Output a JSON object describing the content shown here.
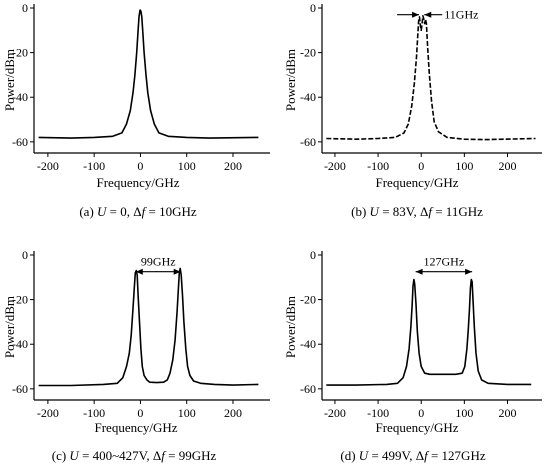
{
  "chart_data": [
    {
      "type": "line",
      "panel": "a",
      "caption": {
        "prefix": "(a) ",
        "var": "U",
        "rest": " = 0,  Δ",
        "var2": "f",
        "rest2": " = 10GHz"
      },
      "xlabel": "Frequency/GHz",
      "ylabel": "Power/dBm",
      "xlim": [
        -230,
        280
      ],
      "ylim": [
        -65,
        0
      ],
      "xticks": [
        -200,
        -100,
        0,
        100,
        200
      ],
      "yticks": [
        0,
        -20,
        -40,
        -60
      ],
      "series": [
        {
          "style": "solid",
          "points": [
            [
              -220,
              -58
            ],
            [
              -150,
              -58.3
            ],
            [
              -100,
              -58
            ],
            [
              -60,
              -57.5
            ],
            [
              -40,
              -56
            ],
            [
              -30,
              -52
            ],
            [
              -22,
              -46
            ],
            [
              -16,
              -38
            ],
            [
              -12,
              -30
            ],
            [
              -8,
              -20
            ],
            [
              -5,
              -10
            ],
            [
              -3,
              -4
            ],
            [
              -1,
              -1
            ],
            [
              0,
              -1
            ],
            [
              1,
              -1.5
            ],
            [
              3,
              -4
            ],
            [
              5,
              -10
            ],
            [
              8,
              -20
            ],
            [
              12,
              -30
            ],
            [
              16,
              -38
            ],
            [
              22,
              -46
            ],
            [
              30,
              -52
            ],
            [
              40,
              -56
            ],
            [
              60,
              -57.5
            ],
            [
              100,
              -58
            ],
            [
              150,
              -58.3
            ],
            [
              255,
              -58
            ]
          ]
        }
      ],
      "annotation": null
    },
    {
      "type": "line",
      "panel": "b",
      "caption": {
        "prefix": "(b) ",
        "var": "U",
        "rest": " = 83V,  Δ",
        "var2": "f",
        "rest2": " = 11GHz"
      },
      "xlabel": "Frequency/GHz",
      "ylabel": "Power/dBm",
      "xlim": [
        -230,
        280
      ],
      "ylim": [
        -65,
        0
      ],
      "xticks": [
        -200,
        -100,
        0,
        100,
        200
      ],
      "yticks": [
        0,
        -20,
        -40,
        -60
      ],
      "series": [
        {
          "style": "dashed",
          "points": [
            [
              -220,
              -58.5
            ],
            [
              -150,
              -58.8
            ],
            [
              -100,
              -58.5
            ],
            [
              -60,
              -58
            ],
            [
              -40,
              -56
            ],
            [
              -30,
              -52
            ],
            [
              -22,
              -44
            ],
            [
              -16,
              -34
            ],
            [
              -11,
              -22
            ],
            [
              -8,
              -12
            ],
            [
              -6,
              -6
            ],
            [
              -4,
              -4
            ],
            [
              -2,
              -8
            ],
            [
              0,
              -10
            ],
            [
              2,
              -7
            ],
            [
              4,
              -3.5
            ],
            [
              6,
              -5
            ],
            [
              8,
              -7
            ],
            [
              10,
              -5
            ],
            [
              12,
              -7
            ],
            [
              15,
              -18
            ],
            [
              19,
              -30
            ],
            [
              24,
              -42
            ],
            [
              30,
              -51
            ],
            [
              40,
              -55.5
            ],
            [
              60,
              -58
            ],
            [
              100,
              -58.8
            ],
            [
              150,
              -59
            ],
            [
              265,
              -58.5
            ]
          ]
        }
      ],
      "annotation": {
        "label": "11GHz",
        "x1": -5,
        "x2": 7,
        "y": -3
      }
    },
    {
      "type": "line",
      "panel": "c",
      "caption": {
        "prefix": "(c) ",
        "var": "U",
        "rest": " = 400~427V,  Δ",
        "var2": "f",
        "rest2": " = 99GHz"
      },
      "xlabel": "Frequency/GHz",
      "ylabel": "Power/dBm",
      "xlim": [
        -230,
        280
      ],
      "ylim": [
        -65,
        0
      ],
      "xticks": [
        -200,
        -100,
        0,
        100,
        200
      ],
      "yticks": [
        0,
        -20,
        -40,
        -60
      ],
      "series": [
        {
          "style": "solid",
          "points": [
            [
              -220,
              -58.5
            ],
            [
              -150,
              -58.5
            ],
            [
              -80,
              -58
            ],
            [
              -50,
              -57.5
            ],
            [
              -38,
              -55
            ],
            [
              -30,
              -50
            ],
            [
              -24,
              -44
            ],
            [
              -20,
              -36
            ],
            [
              -16,
              -24
            ],
            [
              -13,
              -14
            ],
            [
              -11,
              -8
            ],
            [
              -9,
              -7
            ],
            [
              -7,
              -9
            ],
            [
              -5,
              -18
            ],
            [
              -2,
              -30
            ],
            [
              1,
              -42
            ],
            [
              4,
              -50
            ],
            [
              8,
              -54
            ],
            [
              14,
              -56
            ],
            [
              20,
              -57
            ],
            [
              35,
              -57.2
            ],
            [
              50,
              -57
            ],
            [
              58,
              -56
            ],
            [
              64,
              -53
            ],
            [
              70,
              -47
            ],
            [
              75,
              -38
            ],
            [
              79,
              -26
            ],
            [
              82,
              -15
            ],
            [
              84,
              -8
            ],
            [
              86,
              -6
            ],
            [
              88,
              -9
            ],
            [
              91,
              -18
            ],
            [
              94,
              -30
            ],
            [
              98,
              -42
            ],
            [
              102,
              -50
            ],
            [
              107,
              -54
            ],
            [
              115,
              -56.5
            ],
            [
              130,
              -57.5
            ],
            [
              160,
              -58
            ],
            [
              200,
              -58.3
            ],
            [
              255,
              -58
            ]
          ]
        }
      ],
      "annotation": {
        "label": "99GHz",
        "x1": -10,
        "x2": 87,
        "y": -3
      }
    },
    {
      "type": "line",
      "panel": "d",
      "caption": {
        "prefix": "(d) ",
        "var": "U",
        "rest": " = 499V,  Δ",
        "var2": "f",
        "rest2": " = 127GHz"
      },
      "xlabel": "Frequency/GHz",
      "ylabel": "Power/dBm",
      "xlim": [
        -230,
        280
      ],
      "ylim": [
        -65,
        0
      ],
      "xticks": [
        -200,
        -100,
        0,
        100,
        200
      ],
      "yticks": [
        0,
        -20,
        -40,
        -60
      ],
      "series": [
        {
          "style": "solid",
          "points": [
            [
              -220,
              -58.3
            ],
            [
              -150,
              -58.3
            ],
            [
              -80,
              -58
            ],
            [
              -55,
              -57.5
            ],
            [
              -42,
              -55
            ],
            [
              -34,
              -50
            ],
            [
              -28,
              -42
            ],
            [
              -24,
              -32
            ],
            [
              -21,
              -22
            ],
            [
              -19,
              -14
            ],
            [
              -17,
              -11
            ],
            [
              -15,
              -13
            ],
            [
              -12,
              -22
            ],
            [
              -9,
              -34
            ],
            [
              -5,
              -44
            ],
            [
              0,
              -50
            ],
            [
              8,
              -53
            ],
            [
              20,
              -53.5
            ],
            [
              50,
              -53.5
            ],
            [
              80,
              -53.5
            ],
            [
              95,
              -53
            ],
            [
              101,
              -50
            ],
            [
              106,
              -42
            ],
            [
              109,
              -34
            ],
            [
              112,
              -24
            ],
            [
              114,
              -15
            ],
            [
              116,
              -11
            ],
            [
              118,
              -12
            ],
            [
              120,
              -20
            ],
            [
              123,
              -32
            ],
            [
              127,
              -44
            ],
            [
              132,
              -52
            ],
            [
              140,
              -56
            ],
            [
              155,
              -57.5
            ],
            [
              200,
              -58
            ],
            [
              255,
              -58
            ]
          ]
        }
      ],
      "annotation": {
        "label": "127GHz",
        "x1": -13,
        "x2": 118,
        "y": -3
      }
    }
  ]
}
